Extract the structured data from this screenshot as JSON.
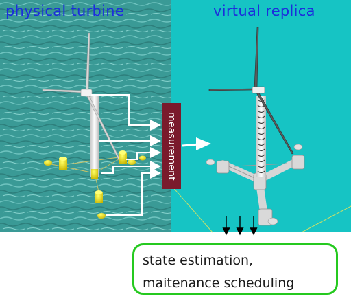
{
  "titles": {
    "left": "physical turbine",
    "right": "virtual replica"
  },
  "measurement_label": "measurement",
  "result_box": {
    "line1": "state estimation,",
    "line2": "maitenance scheduling"
  },
  "colors": {
    "title_text": "#1c2ddc",
    "measurement_box": "#7a1a2c",
    "result_border": "#25c91f",
    "ocean_left": "#3a9a96",
    "ocean_right": "#16c4c4"
  }
}
